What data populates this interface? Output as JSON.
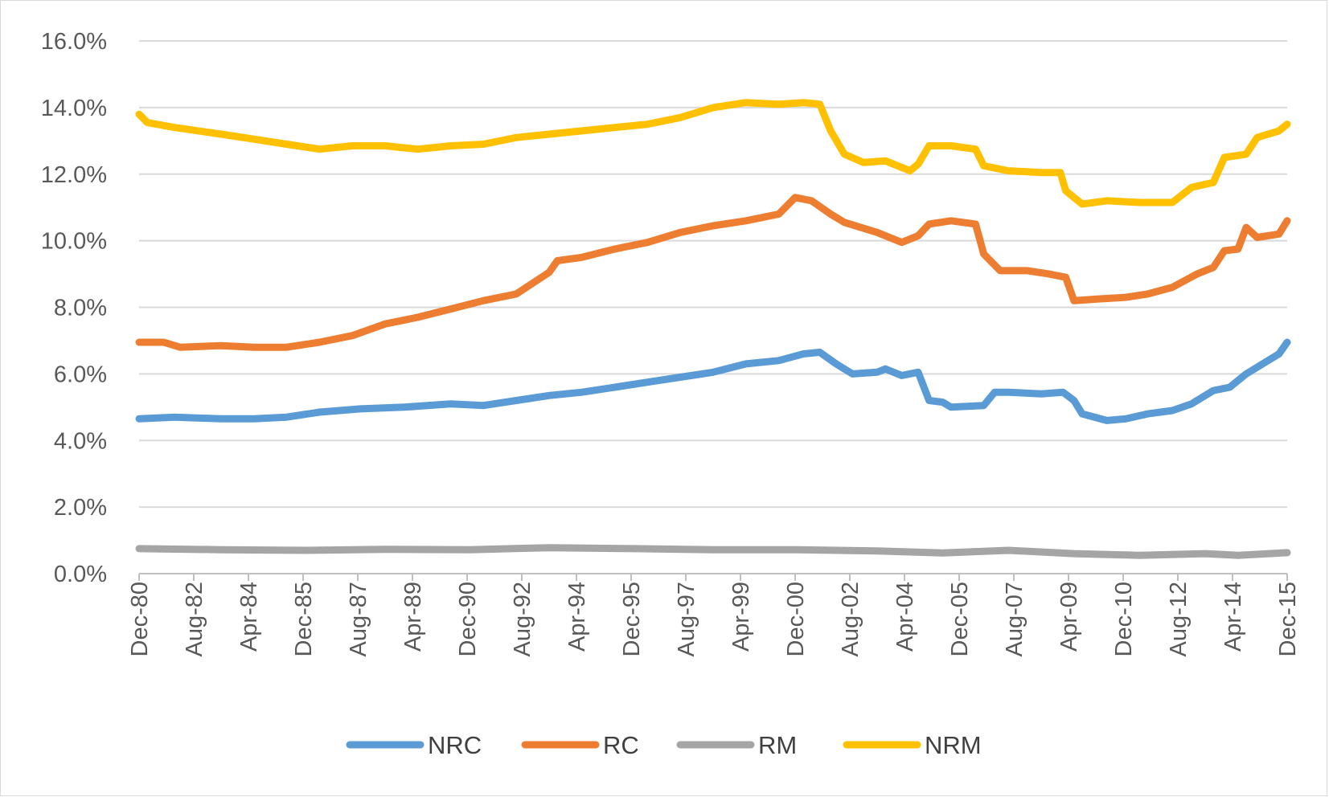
{
  "chart_data": {
    "type": "line",
    "title": "",
    "xlabel": "",
    "ylabel": "",
    "ylim": [
      0.0,
      16.0
    ],
    "y_unit": "%",
    "y_ticks": [
      "0.0%",
      "2.0%",
      "4.0%",
      "6.0%",
      "8.0%",
      "10.0%",
      "12.0%",
      "14.0%",
      "16.0%"
    ],
    "x_range": [
      "1980-12",
      "2015-12"
    ],
    "x_tick_labels": [
      "Dec-80",
      "Aug-82",
      "Apr-84",
      "Dec-85",
      "Aug-87",
      "Apr-89",
      "Dec-90",
      "Aug-92",
      "Apr-94",
      "Dec-95",
      "Aug-97",
      "Apr-99",
      "Dec-00",
      "Aug-02",
      "Apr-04",
      "Dec-05",
      "Aug-07",
      "Apr-09",
      "Dec-10",
      "Aug-12",
      "Apr-14",
      "Dec-15"
    ],
    "grid": "horizontal",
    "legend_position": "bottom",
    "series": [
      {
        "name": "NRC",
        "color": "#5B9BD5",
        "points": [
          [
            "1980-12",
            4.65
          ],
          [
            "1982-01",
            4.7
          ],
          [
            "1983-06",
            4.65
          ],
          [
            "1984-06",
            4.65
          ],
          [
            "1985-06",
            4.7
          ],
          [
            "1986-06",
            4.85
          ],
          [
            "1987-09",
            4.95
          ],
          [
            "1989-01",
            5.0
          ],
          [
            "1990-06",
            5.1
          ],
          [
            "1991-06",
            5.05
          ],
          [
            "1992-06",
            5.2
          ],
          [
            "1993-06",
            5.35
          ],
          [
            "1994-06",
            5.45
          ],
          [
            "1995-06",
            5.6
          ],
          [
            "1996-06",
            5.75
          ],
          [
            "1997-06",
            5.9
          ],
          [
            "1998-06",
            6.05
          ],
          [
            "1999-06",
            6.3
          ],
          [
            "2000-06",
            6.4
          ],
          [
            "2001-03",
            6.6
          ],
          [
            "2001-09",
            6.65
          ],
          [
            "2002-03",
            6.3
          ],
          [
            "2002-09",
            6.0
          ],
          [
            "2003-06",
            6.05
          ],
          [
            "2003-09",
            6.15
          ],
          [
            "2004-03",
            5.95
          ],
          [
            "2004-09",
            6.05
          ],
          [
            "2005-01",
            5.2
          ],
          [
            "2005-06",
            5.15
          ],
          [
            "2005-09",
            5.0
          ],
          [
            "2006-09",
            5.05
          ],
          [
            "2007-01",
            5.45
          ],
          [
            "2007-06",
            5.45
          ],
          [
            "2008-06",
            5.4
          ],
          [
            "2009-02",
            5.45
          ],
          [
            "2009-06",
            5.2
          ],
          [
            "2009-09",
            4.8
          ],
          [
            "2010-06",
            4.6
          ],
          [
            "2011-01",
            4.65
          ],
          [
            "2011-09",
            4.8
          ],
          [
            "2012-06",
            4.9
          ],
          [
            "2013-01",
            5.1
          ],
          [
            "2013-09",
            5.5
          ],
          [
            "2014-03",
            5.6
          ],
          [
            "2014-09",
            6.0
          ],
          [
            "2015-03",
            6.3
          ],
          [
            "2015-09",
            6.6
          ],
          [
            "2015-12",
            6.95
          ]
        ]
      },
      {
        "name": "RC",
        "color": "#ED7D31",
        "points": [
          [
            "1980-12",
            6.95
          ],
          [
            "1981-09",
            6.95
          ],
          [
            "1982-03",
            6.8
          ],
          [
            "1983-06",
            6.85
          ],
          [
            "1984-06",
            6.8
          ],
          [
            "1985-06",
            6.8
          ],
          [
            "1986-06",
            6.95
          ],
          [
            "1987-06",
            7.15
          ],
          [
            "1988-06",
            7.5
          ],
          [
            "1989-06",
            7.7
          ],
          [
            "1990-06",
            7.95
          ],
          [
            "1991-06",
            8.2
          ],
          [
            "1992-06",
            8.4
          ],
          [
            "1993-06",
            9.05
          ],
          [
            "1993-09",
            9.4
          ],
          [
            "1994-06",
            9.5
          ],
          [
            "1995-06",
            9.75
          ],
          [
            "1996-06",
            9.95
          ],
          [
            "1997-06",
            10.25
          ],
          [
            "1998-06",
            10.45
          ],
          [
            "1999-06",
            10.6
          ],
          [
            "2000-06",
            10.8
          ],
          [
            "2000-12",
            11.3
          ],
          [
            "2001-06",
            11.2
          ],
          [
            "2002-01",
            10.8
          ],
          [
            "2002-06",
            10.55
          ],
          [
            "2003-06",
            10.25
          ],
          [
            "2004-03",
            9.95
          ],
          [
            "2004-09",
            10.15
          ],
          [
            "2005-01",
            10.5
          ],
          [
            "2005-09",
            10.6
          ],
          [
            "2006-06",
            10.5
          ],
          [
            "2006-09",
            9.6
          ],
          [
            "2007-03",
            9.1
          ],
          [
            "2008-01",
            9.1
          ],
          [
            "2008-09",
            9.0
          ],
          [
            "2009-03",
            8.9
          ],
          [
            "2009-06",
            8.2
          ],
          [
            "2010-03",
            8.25
          ],
          [
            "2011-01",
            8.3
          ],
          [
            "2011-09",
            8.4
          ],
          [
            "2012-06",
            8.6
          ],
          [
            "2013-03",
            9.0
          ],
          [
            "2013-09",
            9.2
          ],
          [
            "2014-01",
            9.7
          ],
          [
            "2014-06",
            9.75
          ],
          [
            "2014-09",
            10.4
          ],
          [
            "2015-01",
            10.1
          ],
          [
            "2015-09",
            10.2
          ],
          [
            "2015-12",
            10.6
          ]
        ]
      },
      {
        "name": "RM",
        "color": "#A5A5A5",
        "points": [
          [
            "1980-12",
            0.75
          ],
          [
            "1983-06",
            0.72
          ],
          [
            "1986-01",
            0.7
          ],
          [
            "1988-06",
            0.73
          ],
          [
            "1991-01",
            0.72
          ],
          [
            "1993-06",
            0.78
          ],
          [
            "1996-01",
            0.75
          ],
          [
            "1998-06",
            0.72
          ],
          [
            "2001-01",
            0.72
          ],
          [
            "2003-06",
            0.68
          ],
          [
            "2005-06",
            0.62
          ],
          [
            "2007-06",
            0.7
          ],
          [
            "2009-06",
            0.6
          ],
          [
            "2011-06",
            0.55
          ],
          [
            "2013-06",
            0.6
          ],
          [
            "2014-06",
            0.55
          ],
          [
            "2015-12",
            0.63
          ]
        ]
      },
      {
        "name": "NRM",
        "color": "#FFC000",
        "points": [
          [
            "1980-12",
            13.8
          ],
          [
            "1981-03",
            13.55
          ],
          [
            "1982-01",
            13.4
          ],
          [
            "1983-06",
            13.2
          ],
          [
            "1984-06",
            13.05
          ],
          [
            "1985-06",
            12.9
          ],
          [
            "1986-06",
            12.75
          ],
          [
            "1987-06",
            12.85
          ],
          [
            "1988-06",
            12.85
          ],
          [
            "1989-06",
            12.75
          ],
          [
            "1990-06",
            12.85
          ],
          [
            "1991-06",
            12.9
          ],
          [
            "1992-06",
            13.1
          ],
          [
            "1993-06",
            13.2
          ],
          [
            "1994-06",
            13.3
          ],
          [
            "1995-06",
            13.4
          ],
          [
            "1996-06",
            13.5
          ],
          [
            "1997-06",
            13.7
          ],
          [
            "1998-06",
            14.0
          ],
          [
            "1999-06",
            14.15
          ],
          [
            "2000-06",
            14.1
          ],
          [
            "2001-03",
            14.15
          ],
          [
            "2001-09",
            14.1
          ],
          [
            "2002-01",
            13.3
          ],
          [
            "2002-06",
            12.6
          ],
          [
            "2003-01",
            12.35
          ],
          [
            "2003-09",
            12.4
          ],
          [
            "2004-06",
            12.1
          ],
          [
            "2004-09",
            12.3
          ],
          [
            "2005-01",
            12.85
          ],
          [
            "2005-09",
            12.85
          ],
          [
            "2006-06",
            12.75
          ],
          [
            "2006-09",
            12.25
          ],
          [
            "2007-06",
            12.1
          ],
          [
            "2008-06",
            12.05
          ],
          [
            "2009-01",
            12.05
          ],
          [
            "2009-03",
            11.5
          ],
          [
            "2009-09",
            11.1
          ],
          [
            "2010-06",
            11.2
          ],
          [
            "2011-06",
            11.15
          ],
          [
            "2012-06",
            11.15
          ],
          [
            "2013-01",
            11.6
          ],
          [
            "2013-09",
            11.75
          ],
          [
            "2014-01",
            12.5
          ],
          [
            "2014-09",
            12.6
          ],
          [
            "2015-01",
            13.1
          ],
          [
            "2015-09",
            13.3
          ],
          [
            "2015-12",
            13.5
          ]
        ]
      }
    ]
  }
}
